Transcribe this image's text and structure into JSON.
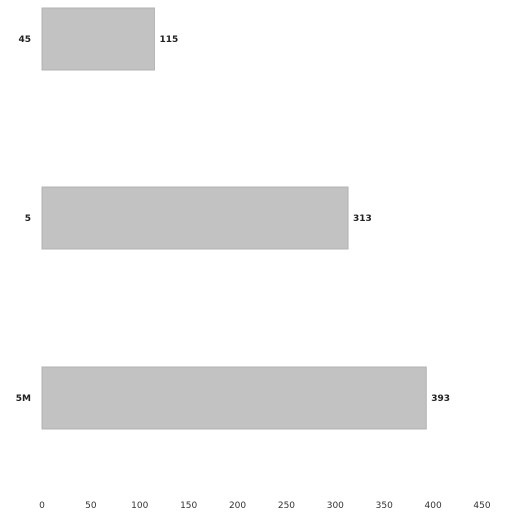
{
  "chart_data": {
    "type": "bar",
    "orientation": "horizontal",
    "categories": [
      "45",
      "5",
      "5M"
    ],
    "values": [
      115,
      313,
      393
    ],
    "xlim": [
      0,
      450
    ],
    "xticks": [
      0,
      50,
      100,
      150,
      200,
      250,
      300,
      350,
      400,
      450
    ],
    "grid": false,
    "bar_color": "#c2c2c2",
    "title": "",
    "xlabel": "",
    "ylabel": ""
  }
}
